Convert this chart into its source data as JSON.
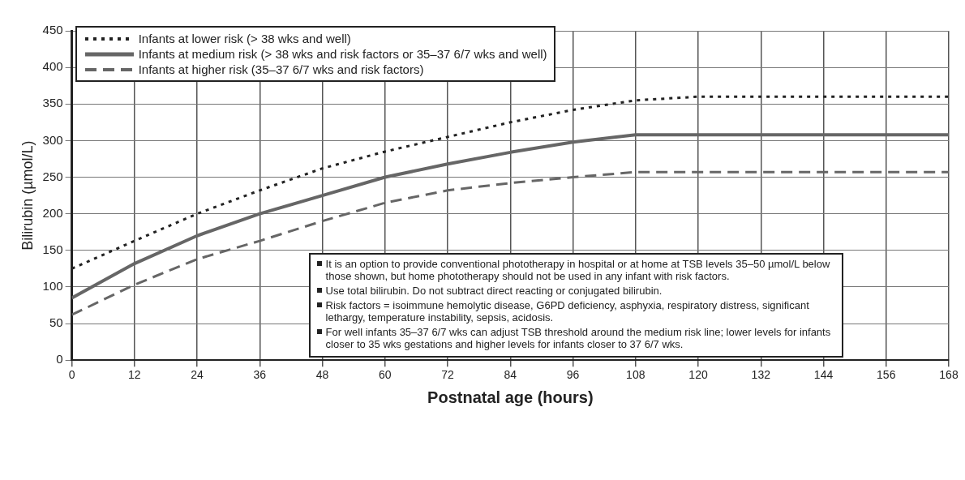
{
  "chart_data": {
    "type": "line",
    "xlabel": "Postnatal age (hours)",
    "ylabel": "Bilirubin (µmol/L)",
    "series": [
      {
        "name": "Infants at lower risk (> 38 wks and well)",
        "color": "#222222",
        "line_style": "dotted",
        "x": [
          0,
          12,
          24,
          36,
          48,
          60,
          72,
          84,
          96,
          108,
          120,
          168
        ],
        "values": [
          125,
          163,
          200,
          232,
          262,
          285,
          305,
          325,
          342,
          355,
          360,
          360
        ]
      },
      {
        "name": "Infants at medium risk (> 38 wks and risk factors or 35–37 6/7 wks and well)",
        "color": "#666666",
        "line_style": "solid",
        "x": [
          0,
          12,
          24,
          36,
          48,
          60,
          72,
          84,
          96,
          108,
          168
        ],
        "values": [
          85,
          132,
          170,
          200,
          225,
          250,
          268,
          284,
          298,
          308,
          308
        ]
      },
      {
        "name": "Infants at higher risk (35–37 6/7 wks and risk factors)",
        "color": "#666666",
        "line_style": "dashed",
        "x": [
          0,
          12,
          24,
          36,
          48,
          60,
          72,
          84,
          96,
          108,
          168
        ],
        "values": [
          62,
          103,
          138,
          163,
          190,
          215,
          232,
          242,
          250,
          257,
          257
        ]
      }
    ],
    "xlim": [
      0,
      168
    ],
    "xticks": [
      0,
      12,
      24,
      36,
      48,
      60,
      72,
      84,
      96,
      108,
      120,
      132,
      144,
      156,
      168
    ],
    "ylim": [
      0,
      450
    ],
    "yticks": [
      0,
      50,
      100,
      150,
      200,
      250,
      300,
      350,
      400,
      450
    ],
    "grid": true,
    "legend": "top left",
    "marker": "none",
    "annotations": [
      "It is an option to provide conventional phototherapy in hospital or at home at TSB levels 35–50 µmol/L below those shown, but home phototherapy should not be used in any infant with risk factors.",
      "Use total bilirubin. Do not subtract direct reacting or conjugated bilirubin.",
      "Risk factors = isoimmune hemolytic disease, G6PD deficiency, asphyxia, respiratory distress, significant lethargy, temperature instability, sepsis, acidosis.",
      "For well infants 35–37 6/7 wks can adjust TSB threshold around the medium risk line; lower levels for infants closer to 35 wks gestations and higher levels for infants closer to 37 6/7 wks."
    ]
  }
}
